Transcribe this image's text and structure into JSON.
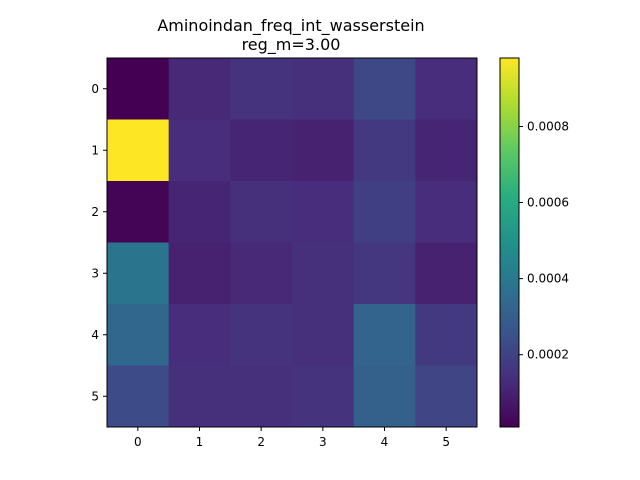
{
  "chart_data": {
    "type": "heatmap",
    "title": "Aminoindan_freq_int_wasserstein",
    "subtitle": "reg_m=3.00",
    "xlabel": "",
    "ylabel": "",
    "x_ticks": [
      "0",
      "1",
      "2",
      "3",
      "4",
      "5"
    ],
    "y_ticks": [
      "0",
      "1",
      "2",
      "3",
      "4",
      "5"
    ],
    "values": [
      [
        1e-05,
        0.00012,
        0.00015,
        0.00014,
        0.00022,
        0.00013
      ],
      [
        0.00098,
        0.00013,
        0.00011,
        0.0001,
        0.00017,
        0.00011
      ],
      [
        2e-05,
        0.00011,
        0.00014,
        0.00013,
        0.00019,
        0.00013
      ],
      [
        0.00038,
        0.0001,
        0.00012,
        0.00014,
        0.00016,
        0.0001
      ],
      [
        0.00033,
        0.00013,
        0.00015,
        0.00014,
        0.00032,
        0.00017
      ],
      [
        0.00023,
        0.00014,
        0.00014,
        0.00015,
        0.00031,
        0.00021
      ]
    ],
    "colorscale": "viridis",
    "vmin": 1e-05,
    "vmax": 0.00098,
    "colorbar_ticks": [
      {
        "value": 0.0002,
        "label": "0.0002"
      },
      {
        "value": 0.0004,
        "label": "0.0004"
      },
      {
        "value": 0.0006,
        "label": "0.0006"
      },
      {
        "value": 0.0008,
        "label": "0.0008"
      }
    ]
  }
}
